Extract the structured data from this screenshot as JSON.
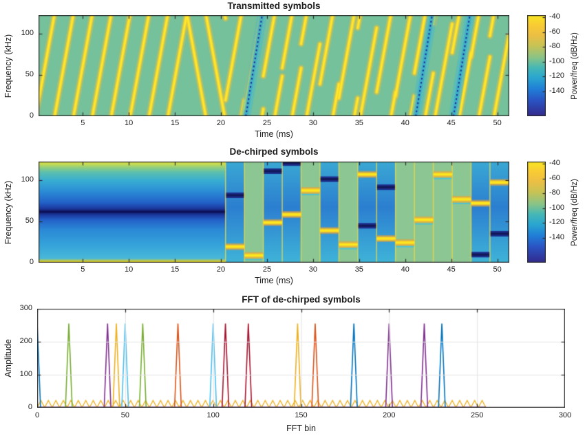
{
  "figure": {
    "background": "#ffffff",
    "axis_color": "#2b2b2b",
    "grid_color": "#e3e3e3",
    "text_color": "#1c1c1c"
  },
  "chart_data": [
    {
      "type": "heatmap",
      "kind": "spectrogram-transmitted",
      "title": "Transmitted symbols",
      "xlabel": "Time (ms)",
      "ylabel": "Frequency (kHz)",
      "xlim": [
        0.2,
        51.3
      ],
      "ylim": [
        0,
        123
      ],
      "xticks": [
        5,
        10,
        15,
        20,
        25,
        30,
        35,
        40,
        45,
        50
      ],
      "yticks": [
        0,
        50,
        100
      ],
      "bw_khz": 125,
      "symbol_ms": 2.05,
      "nbins": 256,
      "bg": "#74c19b",
      "preamble_upchirp_starts": [
        -0.1,
        1.95,
        4.0,
        6.05,
        8.1,
        10.15,
        12.2,
        14.25
      ],
      "downchirps": [
        [
          16.3,
          18.35
        ],
        [
          18.35,
          20.4
        ],
        [
          20.4,
          20.5
        ]
      ],
      "data_symbols": [
        {
          "t": 20.5,
          "bin": 40
        },
        {
          "t": 22.55,
          "bin": 18
        },
        {
          "t": 24.6,
          "bin": 100
        },
        {
          "t": 26.65,
          "bin": 120
        },
        {
          "t": 28.7,
          "bin": 180
        },
        {
          "t": 30.75,
          "bin": 80
        },
        {
          "t": 32.8,
          "bin": 45
        },
        {
          "t": 34.85,
          "bin": 220
        },
        {
          "t": 36.9,
          "bin": 60
        },
        {
          "t": 38.95,
          "bin": 50
        },
        {
          "t": 41.0,
          "bin": 107
        },
        {
          "t": 43.05,
          "bin": 230
        },
        {
          "t": 45.1,
          "bin": 158
        },
        {
          "t": 47.15,
          "bin": 148
        },
        {
          "t": 49.2,
          "bin": 200
        }
      ],
      "blue_streaks": [
        [
          22.7,
          24.5
        ],
        [
          41.15,
          42.95
        ],
        [
          45.25,
          47.05
        ]
      ],
      "colors": {
        "line_core": "#ffe82a",
        "line_mid": "rgba(244,208,52,0.85)",
        "line_glow": "rgba(236,193,62,0.35)",
        "streak_band": "rgba(70,184,210,0.5)",
        "streak_inner": "rgba(56,172,204,0.8)",
        "streak_core": "#1c2f9b"
      }
    },
    {
      "type": "heatmap",
      "kind": "spectrogram-dechirped",
      "title": "De-chirped symbols",
      "xlabel": "Time (ms)",
      "ylabel": "Frequency (kHz)",
      "xlim": [
        0.2,
        51.3
      ],
      "ylim": [
        0,
        123
      ],
      "xticks": [
        5,
        10,
        15,
        20,
        25,
        30,
        35,
        40,
        45,
        50
      ],
      "yticks": [
        0,
        50,
        100
      ],
      "preamble": {
        "t0": 0.2,
        "t1": 20.5,
        "gradient": [
          [
            0,
            "#f2e426"
          ],
          [
            2,
            "#cfc83a"
          ],
          [
            5,
            "#49b9d8"
          ],
          [
            20,
            "#37a5da"
          ],
          [
            40,
            "#2b8ad6"
          ],
          [
            52,
            "#2361c8"
          ],
          [
            58,
            "#1b3aa0"
          ],
          [
            62,
            "#10155e"
          ],
          [
            66,
            "#1b3aa0"
          ],
          [
            73,
            "#2361c8"
          ],
          [
            86,
            "#2b8ad6"
          ],
          [
            100,
            "#38aed2"
          ],
          [
            110,
            "#5cbfae"
          ],
          [
            116,
            "#93cf7d"
          ],
          [
            120,
            "#c8dc52"
          ],
          [
            123,
            "#dde04a"
          ]
        ],
        "dark_line_khz": 62,
        "bottom_line_khz": 0.6
      },
      "data_symbols": [
        {
          "t0": 20.5,
          "t1": 22.55,
          "freq_khz": 19.5,
          "bg": "blue",
          "dark_khz": 82.0
        },
        {
          "t0": 22.55,
          "t1": 24.6,
          "freq_khz": 8.8,
          "bg": "green"
        },
        {
          "t0": 24.6,
          "t1": 26.65,
          "freq_khz": 48.8,
          "bg": "blue",
          "dark_khz": 111.3
        },
        {
          "t0": 26.65,
          "t1": 28.7,
          "freq_khz": 58.6,
          "bg": "blue",
          "dark_khz": 121.1
        },
        {
          "t0": 28.7,
          "t1": 30.75,
          "freq_khz": 87.9,
          "bg": "green"
        },
        {
          "t0": 30.75,
          "t1": 32.8,
          "freq_khz": 39.1,
          "bg": "blue",
          "dark_khz": 101.6
        },
        {
          "t0": 32.8,
          "t1": 34.85,
          "freq_khz": 22.0,
          "bg": "green"
        },
        {
          "t0": 34.85,
          "t1": 36.9,
          "freq_khz": 107.4,
          "bg": "blue",
          "dark_khz": 44.9
        },
        {
          "t0": 36.9,
          "t1": 38.95,
          "freq_khz": 29.3,
          "bg": "blue",
          "dark_khz": 91.8
        },
        {
          "t0": 38.95,
          "t1": 41.0,
          "freq_khz": 24.4,
          "bg": "green"
        },
        {
          "t0": 41.0,
          "t1": 43.05,
          "freq_khz": 52.2,
          "bg": "green"
        },
        {
          "t0": 43.05,
          "t1": 45.1,
          "freq_khz": 107.4,
          "bg": "green"
        },
        {
          "t0": 45.1,
          "t1": 47.15,
          "freq_khz": 77.1,
          "bg": "green"
        },
        {
          "t0": 47.15,
          "t1": 49.2,
          "freq_khz": 72.3,
          "bg": "blue",
          "dark_khz": 9.8
        },
        {
          "t0": 49.2,
          "t1": 51.3,
          "freq_khz": 97.7,
          "bg": "blue",
          "dark_khz": 35.2
        }
      ],
      "colors": {
        "blue_top": "#3aa8d4",
        "blue_mid": "#2c7fd0",
        "blue_bot": "#3fb4d8",
        "green": "#8cc793",
        "bar_core": "#fbe81e",
        "bar_mid": "#f5c22e",
        "bar_glow": "rgba(240,160,48,0.55)",
        "dark_band": "#1d2c8a",
        "dark_core": "#121758",
        "boundary": "rgba(228,214,70,0.8)",
        "cyan_line": "rgba(68,194,218,0.9)"
      }
    },
    {
      "type": "line",
      "kind": "fft",
      "title": "FFT of de-chirped symbols",
      "xlabel": "FFT bin",
      "ylabel": "Amplitude",
      "xlim": [
        0,
        300
      ],
      "ylim": [
        0,
        300
      ],
      "xticks": [
        0,
        50,
        100,
        150,
        200,
        250,
        300
      ],
      "yticks": [
        0,
        100,
        200,
        300
      ],
      "grid": true,
      "peaks": [
        {
          "bin": 0,
          "amp": 255,
          "color": "#0072BD"
        },
        {
          "bin": 18,
          "amp": 255,
          "color": "#77AC30"
        },
        {
          "bin": 40,
          "amp": 255,
          "color": "#7E2F8E"
        },
        {
          "bin": 45,
          "amp": 255,
          "color": "#EDB120"
        },
        {
          "bin": 50,
          "amp": 255,
          "color": "#4DBEEE"
        },
        {
          "bin": 60,
          "amp": 255,
          "color": "#77AC30"
        },
        {
          "bin": 80,
          "amp": 255,
          "color": "#D95319"
        },
        {
          "bin": 100,
          "amp": 255,
          "color": "#4DBEEE"
        },
        {
          "bin": 107,
          "amp": 255,
          "color": "#A2142F"
        },
        {
          "bin": 120,
          "amp": 255,
          "color": "#A2142F"
        },
        {
          "bin": 148,
          "amp": 255,
          "color": "#EDB120"
        },
        {
          "bin": 158,
          "amp": 255,
          "color": "#D95319"
        },
        {
          "bin": 180,
          "amp": 255,
          "color": "#0072BD"
        },
        {
          "bin": 200,
          "amp": 255,
          "color": "#7E2F8E"
        },
        {
          "bin": 220,
          "amp": 255,
          "color": "#7E2F8E"
        },
        {
          "bin": 230,
          "amp": 255,
          "color": "#0072BD"
        }
      ],
      "noise_sawtooth": {
        "x0": 0,
        "x1": 255,
        "amp": 22,
        "period": 4.25,
        "color": "#EDB120"
      },
      "baseline": {
        "x0": 0,
        "x1": 255,
        "amp": 1.5,
        "color": "#7E2F8E"
      }
    }
  ],
  "colorbar": {
    "label": "Power/freq (dB/Hz)",
    "ticks": [
      "-40",
      "-60",
      "-80",
      "-100",
      "-120",
      "-140"
    ],
    "gradient": [
      [
        0,
        "#f8e621"
      ],
      [
        0.1,
        "#f9cb34"
      ],
      [
        0.2,
        "#ecbf45"
      ],
      [
        0.3,
        "#c9c354"
      ],
      [
        0.42,
        "#8ac487"
      ],
      [
        0.52,
        "#46b8b6"
      ],
      [
        0.62,
        "#2aa6d0"
      ],
      [
        0.73,
        "#217fd8"
      ],
      [
        0.84,
        "#2a55c4"
      ],
      [
        1,
        "#33298c"
      ]
    ]
  }
}
